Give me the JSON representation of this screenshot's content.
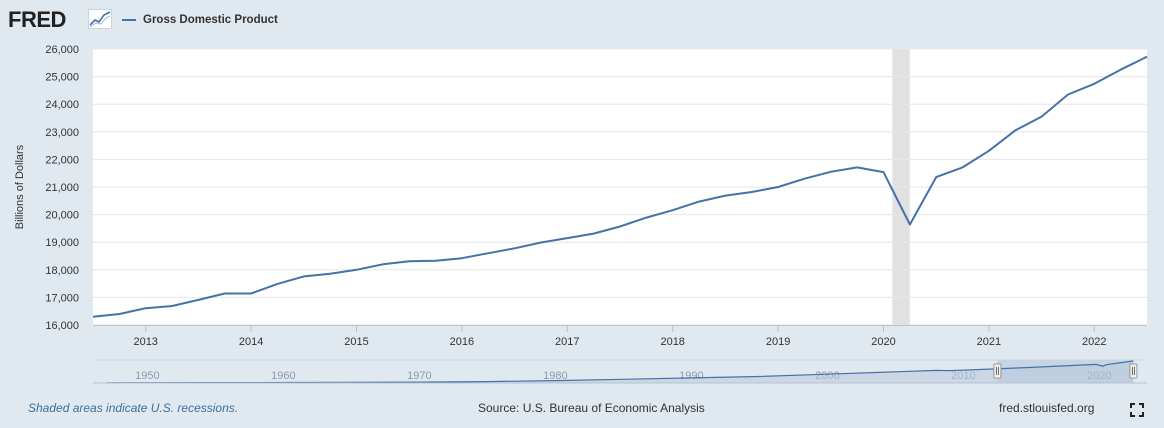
{
  "header": {
    "logo": "FRED",
    "logo_mark_icon": "fred-sparkline-icon",
    "legend_label": "Gross Domestic Product"
  },
  "footer": {
    "recession_note": "Shaded areas indicate U.S. recessions.",
    "source": "Source: U.S. Bureau of Economic Analysis",
    "site": "fred.stlouisfed.org",
    "fullscreen_icon": "fullscreen-icon"
  },
  "colors": {
    "line": "#4572a7",
    "recession": "#e1e1e1",
    "background": "#e1e9f0",
    "plot": "#ffffff",
    "navigator_fill": "#b9c9dc",
    "navigator_window": "#c6d4e4"
  },
  "chart_data": {
    "type": "line",
    "title": "",
    "xlabel": "",
    "ylabel": "Billions of Dollars",
    "xlim": [
      "2012-07-01",
      "2022-07-01"
    ],
    "ylim": [
      16000,
      26000
    ],
    "yticks": [
      16000,
      17000,
      18000,
      19000,
      20000,
      21000,
      22000,
      23000,
      24000,
      25000,
      26000
    ],
    "ytick_labels": [
      "16,000",
      "17,000",
      "18,000",
      "19,000",
      "20,000",
      "21,000",
      "22,000",
      "23,000",
      "24,000",
      "25,000",
      "26,000"
    ],
    "xticks": [
      "2013-01-01",
      "2014-01-01",
      "2015-01-01",
      "2016-01-01",
      "2017-01-01",
      "2018-01-01",
      "2019-01-01",
      "2020-01-01",
      "2021-01-01",
      "2022-01-01"
    ],
    "xtick_labels": [
      "2013",
      "2014",
      "2015",
      "2016",
      "2017",
      "2018",
      "2019",
      "2020",
      "2021",
      "2022"
    ],
    "grid": true,
    "legend": "top-left",
    "recessions": [
      {
        "start": "2020-02-01",
        "end": "2020-04-01"
      }
    ],
    "series": [
      {
        "name": "Gross Domestic Product",
        "x": [
          "2012-07-01",
          "2012-10-01",
          "2013-01-01",
          "2013-04-01",
          "2013-07-01",
          "2013-10-01",
          "2014-01-01",
          "2014-04-01",
          "2014-07-01",
          "2014-10-01",
          "2015-01-01",
          "2015-04-01",
          "2015-07-01",
          "2015-10-01",
          "2016-01-01",
          "2016-04-01",
          "2016-07-01",
          "2016-10-01",
          "2017-01-01",
          "2017-04-01",
          "2017-07-01",
          "2017-10-01",
          "2018-01-01",
          "2018-04-01",
          "2018-07-01",
          "2018-10-01",
          "2019-01-01",
          "2019-04-01",
          "2019-07-01",
          "2019-10-01",
          "2020-01-01",
          "2020-04-01",
          "2020-07-01",
          "2020-10-01",
          "2021-01-01",
          "2021-04-01",
          "2021-07-01",
          "2021-10-01",
          "2022-01-01",
          "2022-04-01",
          "2022-07-01"
        ],
        "values": [
          16300,
          16400,
          16610,
          16690,
          16910,
          17140,
          17140,
          17490,
          17760,
          17860,
          18000,
          18200,
          18310,
          18330,
          18420,
          18600,
          18780,
          18990,
          19150,
          19310,
          19570,
          19890,
          20160,
          20470,
          20690,
          20820,
          21000,
          21300,
          21550,
          21710,
          21540,
          19640,
          21360,
          21710,
          22310,
          23050,
          23550,
          24350,
          24740,
          25250,
          25720
        ]
      }
    ],
    "navigator": {
      "xtick_labels": [
        "1950",
        "1960",
        "1970",
        "1980",
        "1990",
        "2000",
        "2010",
        "2020"
      ],
      "xticks": [
        1950,
        1960,
        1970,
        1980,
        1990,
        2000,
        2010,
        2020
      ],
      "xlim": [
        1946,
        2023.5
      ],
      "window": [
        2012.5,
        2022.5
      ],
      "series": {
        "x": [
          1947,
          1950,
          1955,
          1960,
          1965,
          1970,
          1975,
          1980,
          1985,
          1990,
          1995,
          2000,
          2005,
          2008,
          2009,
          2010,
          2015,
          2019.75,
          2020.25,
          2020.5,
          2022.5
        ],
        "values": [
          243,
          300,
          426,
          543,
          744,
          1073,
          1685,
          2857,
          4339,
          5963,
          7640,
          10250,
          13040,
          14770,
          14450,
          15050,
          18220,
          21690,
          19640,
          21360,
          25720
        ]
      }
    }
  }
}
